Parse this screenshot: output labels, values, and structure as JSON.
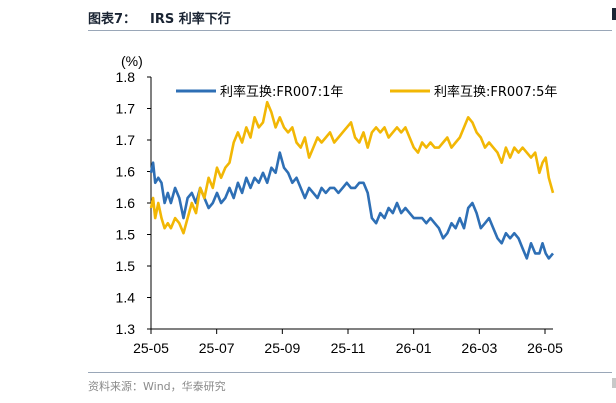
{
  "figure": {
    "number": "图表7：",
    "title": "IRS 利率下行",
    "source": "资料来源：Wind，华泰研究"
  },
  "chart_data": {
    "type": "line",
    "ylabel": "(%)",
    "ylim": [
      1.3,
      1.8
    ],
    "yticks": [
      "1.3",
      "1.4",
      "1.5",
      "1.5",
      "1.6",
      "1.6",
      "1.7",
      "1.7",
      "1.8"
    ],
    "x_ticks": [
      "25-05",
      "25-07",
      "25-09",
      "25-11",
      "26-01",
      "26-03",
      "26-05"
    ],
    "x_range": [
      "2025-05-01",
      "2026-05-20"
    ],
    "grid": false,
    "legend_position": "top",
    "series": [
      {
        "name": "利率互换:FR007:1年",
        "color": "#2e6fb5",
        "points": [
          [
            "2025-05-01",
            1.61
          ],
          [
            "2025-05-03",
            1.63
          ],
          [
            "2025-05-05",
            1.59
          ],
          [
            "2025-05-08",
            1.6
          ],
          [
            "2025-05-11",
            1.59
          ],
          [
            "2025-05-14",
            1.55
          ],
          [
            "2025-05-17",
            1.57
          ],
          [
            "2025-05-20",
            1.55
          ],
          [
            "2025-05-24",
            1.58
          ],
          [
            "2025-05-28",
            1.56
          ],
          [
            "2025-06-01",
            1.52
          ],
          [
            "2025-06-05",
            1.56
          ],
          [
            "2025-06-09",
            1.57
          ],
          [
            "2025-06-13",
            1.55
          ],
          [
            "2025-06-17",
            1.58
          ],
          [
            "2025-06-21",
            1.56
          ],
          [
            "2025-06-25",
            1.54
          ],
          [
            "2025-06-29",
            1.55
          ],
          [
            "2025-07-03",
            1.57
          ],
          [
            "2025-07-07",
            1.55
          ],
          [
            "2025-07-11",
            1.56
          ],
          [
            "2025-07-15",
            1.58
          ],
          [
            "2025-07-19",
            1.56
          ],
          [
            "2025-07-23",
            1.59
          ],
          [
            "2025-07-27",
            1.57
          ],
          [
            "2025-07-31",
            1.6
          ],
          [
            "2025-08-04",
            1.58
          ],
          [
            "2025-08-08",
            1.6
          ],
          [
            "2025-08-12",
            1.59
          ],
          [
            "2025-08-16",
            1.61
          ],
          [
            "2025-08-20",
            1.59
          ],
          [
            "2025-08-24",
            1.62
          ],
          [
            "2025-08-28",
            1.61
          ],
          [
            "2025-09-01",
            1.65
          ],
          [
            "2025-09-05",
            1.62
          ],
          [
            "2025-09-09",
            1.61
          ],
          [
            "2025-09-13",
            1.59
          ],
          [
            "2025-09-17",
            1.6
          ],
          [
            "2025-09-21",
            1.58
          ],
          [
            "2025-09-25",
            1.56
          ],
          [
            "2025-09-29",
            1.58
          ],
          [
            "2025-10-03",
            1.57
          ],
          [
            "2025-10-07",
            1.56
          ],
          [
            "2025-10-11",
            1.58
          ],
          [
            "2025-10-15",
            1.57
          ],
          [
            "2025-10-19",
            1.58
          ],
          [
            "2025-10-23",
            1.58
          ],
          [
            "2025-10-27",
            1.57
          ],
          [
            "2025-10-31",
            1.58
          ],
          [
            "2025-11-04",
            1.59
          ],
          [
            "2025-11-08",
            1.58
          ],
          [
            "2025-11-12",
            1.58
          ],
          [
            "2025-11-16",
            1.59
          ],
          [
            "2025-11-20",
            1.59
          ],
          [
            "2025-11-24",
            1.57
          ],
          [
            "2025-11-28",
            1.52
          ],
          [
            "2025-12-02",
            1.51
          ],
          [
            "2025-12-06",
            1.53
          ],
          [
            "2025-12-10",
            1.52
          ],
          [
            "2025-12-14",
            1.54
          ],
          [
            "2025-12-18",
            1.53
          ],
          [
            "2025-12-22",
            1.55
          ],
          [
            "2025-12-26",
            1.53
          ],
          [
            "2025-12-30",
            1.54
          ],
          [
            "2026-01-03",
            1.53
          ],
          [
            "2026-01-07",
            1.52
          ],
          [
            "2026-01-11",
            1.52
          ],
          [
            "2026-01-15",
            1.52
          ],
          [
            "2026-01-19",
            1.51
          ],
          [
            "2026-01-23",
            1.52
          ],
          [
            "2026-01-27",
            1.51
          ],
          [
            "2026-01-31",
            1.5
          ],
          [
            "2026-02-04",
            1.48
          ],
          [
            "2026-02-08",
            1.49
          ],
          [
            "2026-02-12",
            1.51
          ],
          [
            "2026-02-16",
            1.5
          ],
          [
            "2026-02-20",
            1.52
          ],
          [
            "2026-02-24",
            1.5
          ],
          [
            "2026-02-28",
            1.54
          ],
          [
            "2026-03-04",
            1.55
          ],
          [
            "2026-03-08",
            1.53
          ],
          [
            "2026-03-12",
            1.5
          ],
          [
            "2026-03-16",
            1.51
          ],
          [
            "2026-03-20",
            1.52
          ],
          [
            "2026-03-24",
            1.5
          ],
          [
            "2026-03-28",
            1.48
          ],
          [
            "2026-04-01",
            1.47
          ],
          [
            "2026-04-05",
            1.49
          ],
          [
            "2026-04-09",
            1.48
          ],
          [
            "2026-04-13",
            1.49
          ],
          [
            "2026-04-17",
            1.48
          ],
          [
            "2026-04-21",
            1.46
          ],
          [
            "2026-04-25",
            1.44
          ],
          [
            "2026-04-29",
            1.47
          ],
          [
            "2026-05-03",
            1.45
          ],
          [
            "2026-05-07",
            1.45
          ],
          [
            "2026-05-10",
            1.47
          ],
          [
            "2026-05-13",
            1.45
          ],
          [
            "2026-05-16",
            1.44
          ],
          [
            "2026-05-20",
            1.45
          ]
        ]
      },
      {
        "name": "利率互换:FR007:5年",
        "color": "#f2b705",
        "points": [
          [
            "2025-05-01",
            1.54
          ],
          [
            "2025-05-03",
            1.56
          ],
          [
            "2025-05-05",
            1.52
          ],
          [
            "2025-05-08",
            1.55
          ],
          [
            "2025-05-11",
            1.52
          ],
          [
            "2025-05-14",
            1.5
          ],
          [
            "2025-05-17",
            1.51
          ],
          [
            "2025-05-20",
            1.5
          ],
          [
            "2025-05-24",
            1.52
          ],
          [
            "2025-05-28",
            1.51
          ],
          [
            "2025-06-01",
            1.49
          ],
          [
            "2025-06-05",
            1.52
          ],
          [
            "2025-06-09",
            1.55
          ],
          [
            "2025-06-13",
            1.53
          ],
          [
            "2025-06-17",
            1.58
          ],
          [
            "2025-06-21",
            1.56
          ],
          [
            "2025-06-25",
            1.6
          ],
          [
            "2025-06-29",
            1.58
          ],
          [
            "2025-07-03",
            1.62
          ],
          [
            "2025-07-07",
            1.6
          ],
          [
            "2025-07-11",
            1.62
          ],
          [
            "2025-07-15",
            1.63
          ],
          [
            "2025-07-19",
            1.67
          ],
          [
            "2025-07-23",
            1.69
          ],
          [
            "2025-07-27",
            1.67
          ],
          [
            "2025-07-31",
            1.7
          ],
          [
            "2025-08-04",
            1.68
          ],
          [
            "2025-08-08",
            1.72
          ],
          [
            "2025-08-12",
            1.7
          ],
          [
            "2025-08-16",
            1.71
          ],
          [
            "2025-08-20",
            1.75
          ],
          [
            "2025-08-24",
            1.73
          ],
          [
            "2025-08-28",
            1.7
          ],
          [
            "2025-09-01",
            1.72
          ],
          [
            "2025-09-05",
            1.7
          ],
          [
            "2025-09-09",
            1.69
          ],
          [
            "2025-09-13",
            1.7
          ],
          [
            "2025-09-17",
            1.67
          ],
          [
            "2025-09-21",
            1.66
          ],
          [
            "2025-09-25",
            1.68
          ],
          [
            "2025-09-29",
            1.64
          ],
          [
            "2025-10-03",
            1.66
          ],
          [
            "2025-10-07",
            1.68
          ],
          [
            "2025-10-11",
            1.67
          ],
          [
            "2025-10-15",
            1.68
          ],
          [
            "2025-10-19",
            1.69
          ],
          [
            "2025-10-23",
            1.67
          ],
          [
            "2025-10-27",
            1.68
          ],
          [
            "2025-10-31",
            1.69
          ],
          [
            "2025-11-04",
            1.7
          ],
          [
            "2025-11-08",
            1.71
          ],
          [
            "2025-11-12",
            1.68
          ],
          [
            "2025-11-16",
            1.67
          ],
          [
            "2025-11-20",
            1.69
          ],
          [
            "2025-11-24",
            1.66
          ],
          [
            "2025-11-28",
            1.69
          ],
          [
            "2025-12-02",
            1.7
          ],
          [
            "2025-12-06",
            1.69
          ],
          [
            "2025-12-10",
            1.7
          ],
          [
            "2025-12-14",
            1.68
          ],
          [
            "2025-12-18",
            1.69
          ],
          [
            "2025-12-22",
            1.7
          ],
          [
            "2025-12-26",
            1.69
          ],
          [
            "2025-12-30",
            1.7
          ],
          [
            "2026-01-03",
            1.68
          ],
          [
            "2026-01-07",
            1.66
          ],
          [
            "2026-01-11",
            1.65
          ],
          [
            "2026-01-15",
            1.67
          ],
          [
            "2026-01-19",
            1.66
          ],
          [
            "2026-01-23",
            1.67
          ],
          [
            "2026-01-27",
            1.66
          ],
          [
            "2026-01-31",
            1.66
          ],
          [
            "2026-02-04",
            1.67
          ],
          [
            "2026-02-08",
            1.68
          ],
          [
            "2026-02-12",
            1.66
          ],
          [
            "2026-02-16",
            1.67
          ],
          [
            "2026-02-20",
            1.68
          ],
          [
            "2026-02-24",
            1.7
          ],
          [
            "2026-02-28",
            1.72
          ],
          [
            "2026-03-04",
            1.71
          ],
          [
            "2026-03-08",
            1.69
          ],
          [
            "2026-03-12",
            1.68
          ],
          [
            "2026-03-16",
            1.66
          ],
          [
            "2026-03-20",
            1.67
          ],
          [
            "2026-03-24",
            1.66
          ],
          [
            "2026-03-28",
            1.65
          ],
          [
            "2026-04-01",
            1.63
          ],
          [
            "2026-04-05",
            1.66
          ],
          [
            "2026-04-09",
            1.64
          ],
          [
            "2026-04-13",
            1.66
          ],
          [
            "2026-04-17",
            1.65
          ],
          [
            "2026-04-21",
            1.66
          ],
          [
            "2026-04-25",
            1.65
          ],
          [
            "2026-04-29",
            1.64
          ],
          [
            "2026-05-03",
            1.65
          ],
          [
            "2026-05-07",
            1.61
          ],
          [
            "2026-05-10",
            1.63
          ],
          [
            "2026-05-13",
            1.64
          ],
          [
            "2026-05-16",
            1.6
          ],
          [
            "2026-05-20",
            1.57
          ]
        ]
      }
    ]
  }
}
